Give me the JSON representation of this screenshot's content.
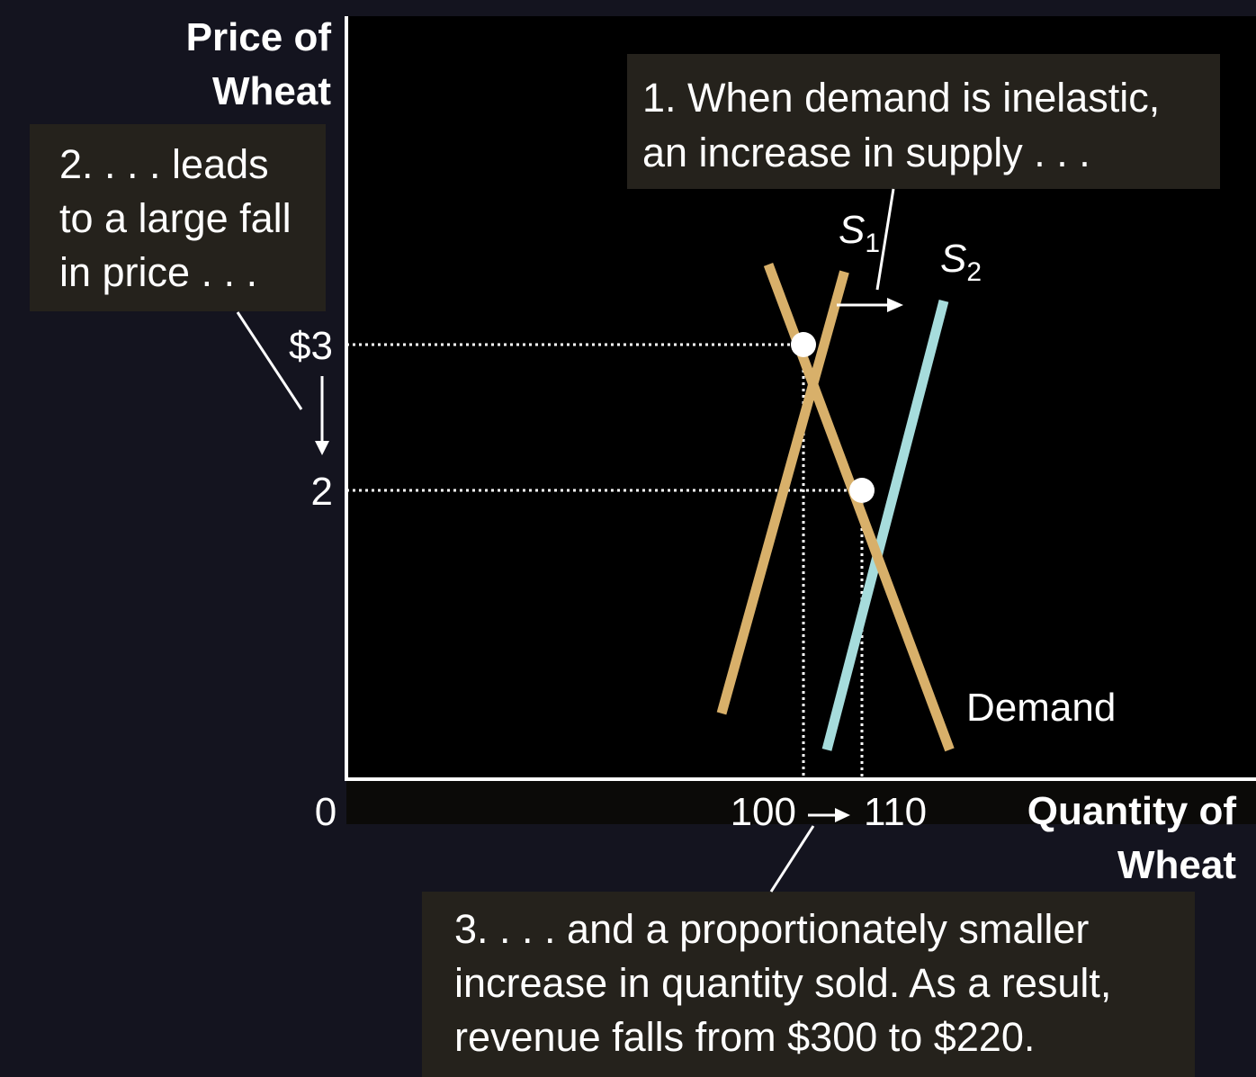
{
  "chart_data": {
    "type": "line",
    "y_axis_title": [
      "Price of",
      "Wheat"
    ],
    "x_axis_title": [
      "Quantity of",
      "Wheat"
    ],
    "origin_label": "0",
    "y_ticks": [
      {
        "value": 3,
        "label": "$3"
      },
      {
        "value": 2,
        "label": "2"
      }
    ],
    "x_ticks": [
      {
        "value": 100,
        "label": "100"
      },
      {
        "value": 110,
        "label": "110"
      }
    ],
    "series": [
      {
        "name": "S",
        "subscript": "1",
        "color": "#d8b06a",
        "points": [
          [
            86,
            0.47
          ],
          [
            107,
            3.5
          ]
        ]
      },
      {
        "name": "S",
        "subscript": "2",
        "color": "#a6dcdc",
        "points": [
          [
            104,
            0.22
          ],
          [
            124,
            3.3
          ]
        ]
      },
      {
        "name": "Demand",
        "subscript": "",
        "color": "#d8b06a",
        "points": [
          [
            94,
            3.55
          ],
          [
            125,
            0.22
          ]
        ]
      }
    ],
    "equilibria": [
      {
        "x": 100,
        "y": 3
      },
      {
        "x": 110,
        "y": 2
      }
    ],
    "quantity_change_label": "→"
  },
  "callouts": {
    "supply": [
      "1. When demand is inelastic,",
      "an increase in supply  . . ."
    ],
    "price": [
      "2. . . . leads",
      "to a large fall",
      "in price . . ."
    ],
    "quantity": [
      "3.  . . . and a proportionately smaller",
      "increase in quantity sold. As a result,",
      "revenue falls from $300 to $220."
    ]
  }
}
